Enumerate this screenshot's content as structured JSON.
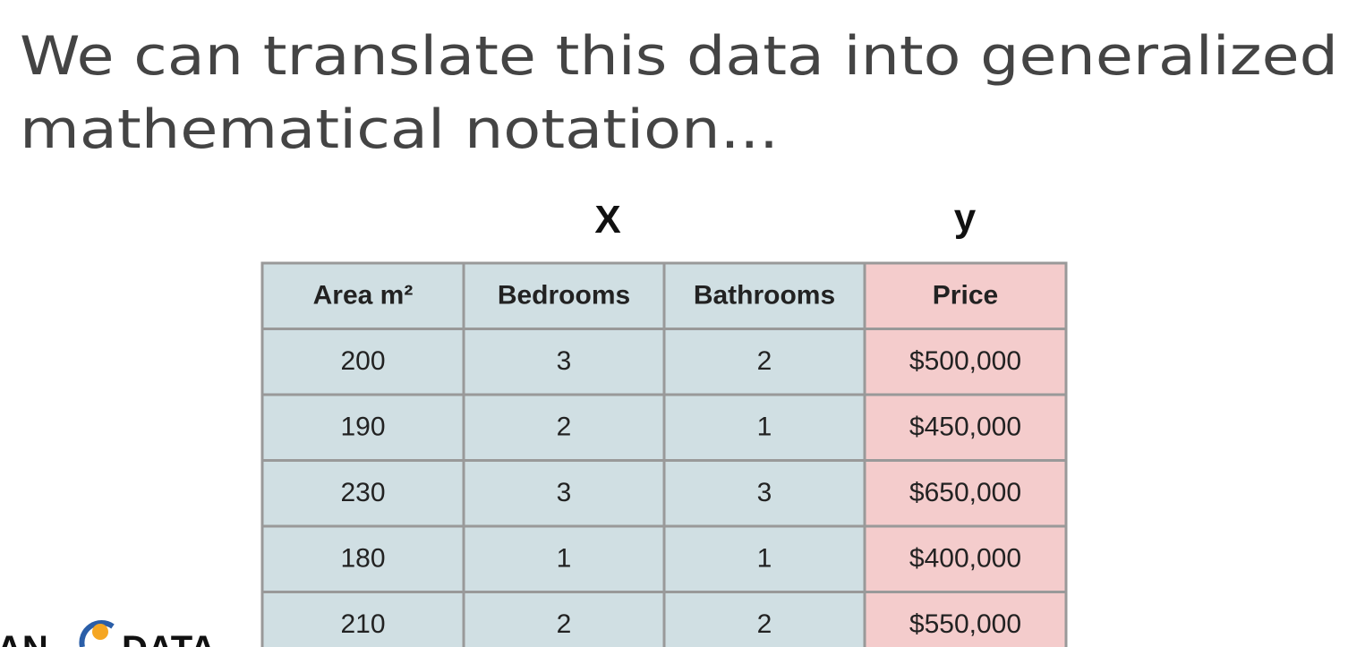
{
  "title": {
    "lines": [
      "We can translate this data into generalized",
      "mathematical notation..."
    ]
  },
  "labels": {
    "features": "X",
    "target": "y"
  },
  "table": {
    "header": [
      "Area m²",
      "Bedrooms",
      "Bathrooms",
      "Price"
    ],
    "rows": [
      [
        "200",
        "3",
        "2",
        "$500,000"
      ],
      [
        "190",
        "2",
        "1",
        "$450,000"
      ],
      [
        "230",
        "3",
        "3",
        "$650,000"
      ],
      [
        "180",
        "1",
        "1",
        "$400,000"
      ],
      [
        "210",
        "2",
        "2",
        "$550,000"
      ]
    ]
  },
  "logo": {
    "left": "AN",
    "right": "DATA"
  }
}
